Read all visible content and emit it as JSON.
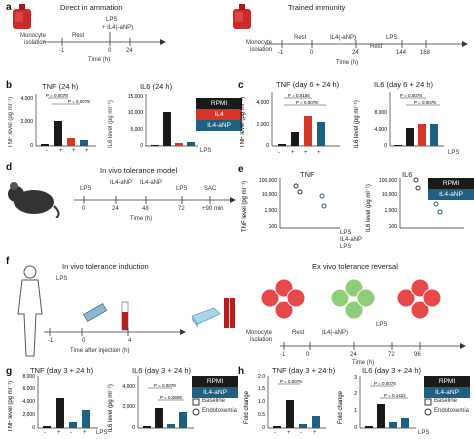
{
  "figure": {
    "a": {
      "letter": "a",
      "left": {
        "title": "Direct in ammation",
        "lps_label": "LPS",
        "il4_label": "+ IL4(-aNP)",
        "stage1": "Monocyte",
        "stage1b": "isolation",
        "stage2": "Rest",
        "ticks": [
          "-1",
          "0",
          "24"
        ],
        "axis": "Time (h)"
      },
      "right": {
        "title": "Trained immunity",
        "il4_label": "IL4(-aNP)",
        "lps_label": "LPS",
        "stage1": "Monocyte",
        "stage1b": "isolation",
        "stage2": "Rest",
        "stage3": "Rest",
        "ticks": [
          "-1",
          "0",
          "24",
          "144",
          "168"
        ],
        "axis": "Time (h)"
      }
    },
    "b": {
      "letter": "b",
      "tnf": {
        "title": "TNF (24 h)",
        "ylabel": "TNF level (pg ml⁻¹)",
        "yticks": [
          "0",
          "2,000",
          "4,000"
        ],
        "p1": "P = 0.0078",
        "p2": "P = 0.0078"
      },
      "il6": {
        "title": "IL6 (24 h)",
        "ylabel": "IL6 level (pg ml⁻¹)",
        "yticks": [
          "0",
          "5,000",
          "10,000",
          "15,000"
        ],
        "p1": "P = 0.0078",
        "p2": "P = 0.0078"
      },
      "xsigns": [
        "-",
        "+",
        "+",
        "+"
      ],
      "xlabel": "LPS"
    },
    "legend_bc": [
      "RPMI",
      "IL4",
      "IL4-aNP"
    ],
    "c": {
      "letter": "c",
      "tnf": {
        "title": "TNF (day 6 + 24 h)",
        "ylabel": "TNF level (pg ml⁻¹)",
        "yticks": [
          "0",
          "1,000",
          "2,000",
          "3,000",
          "4,000",
          "5,000"
        ],
        "p1": "P = 0.0156",
        "p2": "P = 0.0078"
      },
      "il6": {
        "title": "IL6 (day 6 + 24 h)",
        "ylabel": "IL6 level (pg ml⁻¹)",
        "yticks": [
          "0",
          "2,000",
          "4,000",
          "6,000",
          "8,000",
          "10,000"
        ],
        "p1": "P = 0.0078",
        "p2": "P = 0.0078"
      },
      "xsigns": [
        "-",
        "+",
        "+",
        "+"
      ],
      "xlabel": "LPS"
    },
    "d": {
      "letter": "d",
      "title": "In vivo tolerance model",
      "labels": [
        "LPS",
        "IL4-aNP",
        "IL4-aNP",
        "LPS",
        "SAC"
      ],
      "ticks": [
        "0",
        "24",
        "48",
        "72",
        "+90 min"
      ],
      "axis": "Time (h)"
    },
    "e": {
      "letter": "e",
      "tnf": {
        "title": "TNF",
        "ylabel": "TNF level (pg ml⁻¹)",
        "yticks": [
          "100",
          "1,000",
          "10,000",
          "100,000"
        ]
      },
      "il6": {
        "title": "IL6",
        "ylabel": "IL6 level (pg ml⁻¹)",
        "yticks": [
          "100",
          "1,000",
          "10,000",
          "100,000"
        ]
      },
      "rows": [
        "LPS",
        "IL4-aNP",
        "LPS"
      ],
      "legend": [
        "RPMI",
        "IL4-aNP"
      ]
    },
    "f": {
      "letter": "f",
      "left_title": "In vivo tolerance induction",
      "lps_label": "LPS",
      "ticks": [
        "-1",
        "0",
        "4"
      ],
      "axis": "Time after injection (h)",
      "right_title": "Ex vivo tolerance reversal",
      "stage1": "Monocyte",
      "stage1b": "isolation",
      "stage2": "Rest",
      "stage3": "IL4(-aNP)",
      "stage4": "LPS",
      "rticks": [
        "-1",
        "0",
        "24",
        "72",
        "96"
      ],
      "raxis": "Time (h)"
    },
    "g": {
      "letter": "g",
      "tnf": {
        "title": "TNF (day 3 + 24 h)",
        "ylabel": "TNF level (pg ml⁻¹)",
        "yticks": [
          "0",
          "2,000",
          "4,000",
          "6,000",
          "8,000"
        ]
      },
      "il6": {
        "title": "IL6 (day 3 + 24 h)",
        "ylabel": "IL6 level (pg ml⁻¹)",
        "yticks": [
          "0",
          "2,000",
          "4,000"
        ],
        "p1": "P = 0.0078",
        "p2": "P = 0.4609"
      },
      "legend": [
        "RPMI",
        "IL4-aNP",
        "Baseline",
        "Endotoxemia"
      ],
      "xsigns": [
        "-",
        "+",
        "-",
        "+"
      ],
      "xlabel": "LPS"
    },
    "h": {
      "letter": "h",
      "tnf": {
        "title": "TNF (day 3 + 24 h)",
        "ylabel": "Fold change",
        "yticks": [
          "0",
          "0.5",
          "1.0",
          "1.5",
          "2.0"
        ],
        "p1": "P = 0.0078"
      },
      "il6": {
        "title": "IL6 (day 3 + 24 h)",
        "ylabel": "Fold change",
        "yticks": [
          "0",
          "1",
          "2",
          "3"
        ],
        "p1": "P = 0.0078",
        "p2": "P = 0.1422"
      },
      "legend": [
        "RPMI",
        "IL4-aNP",
        "Baseline",
        "Endotoxemia"
      ],
      "xsigns": [
        "-",
        "+",
        "-",
        "+"
      ],
      "xlabel": "LPS"
    }
  },
  "colors": {
    "rpmi": "#1a1a1a",
    "il4": "#d8352a",
    "il4anp": "#1f5f80",
    "red_bar_light": "#e9736a",
    "teal_light": "#3f8fb3"
  }
}
